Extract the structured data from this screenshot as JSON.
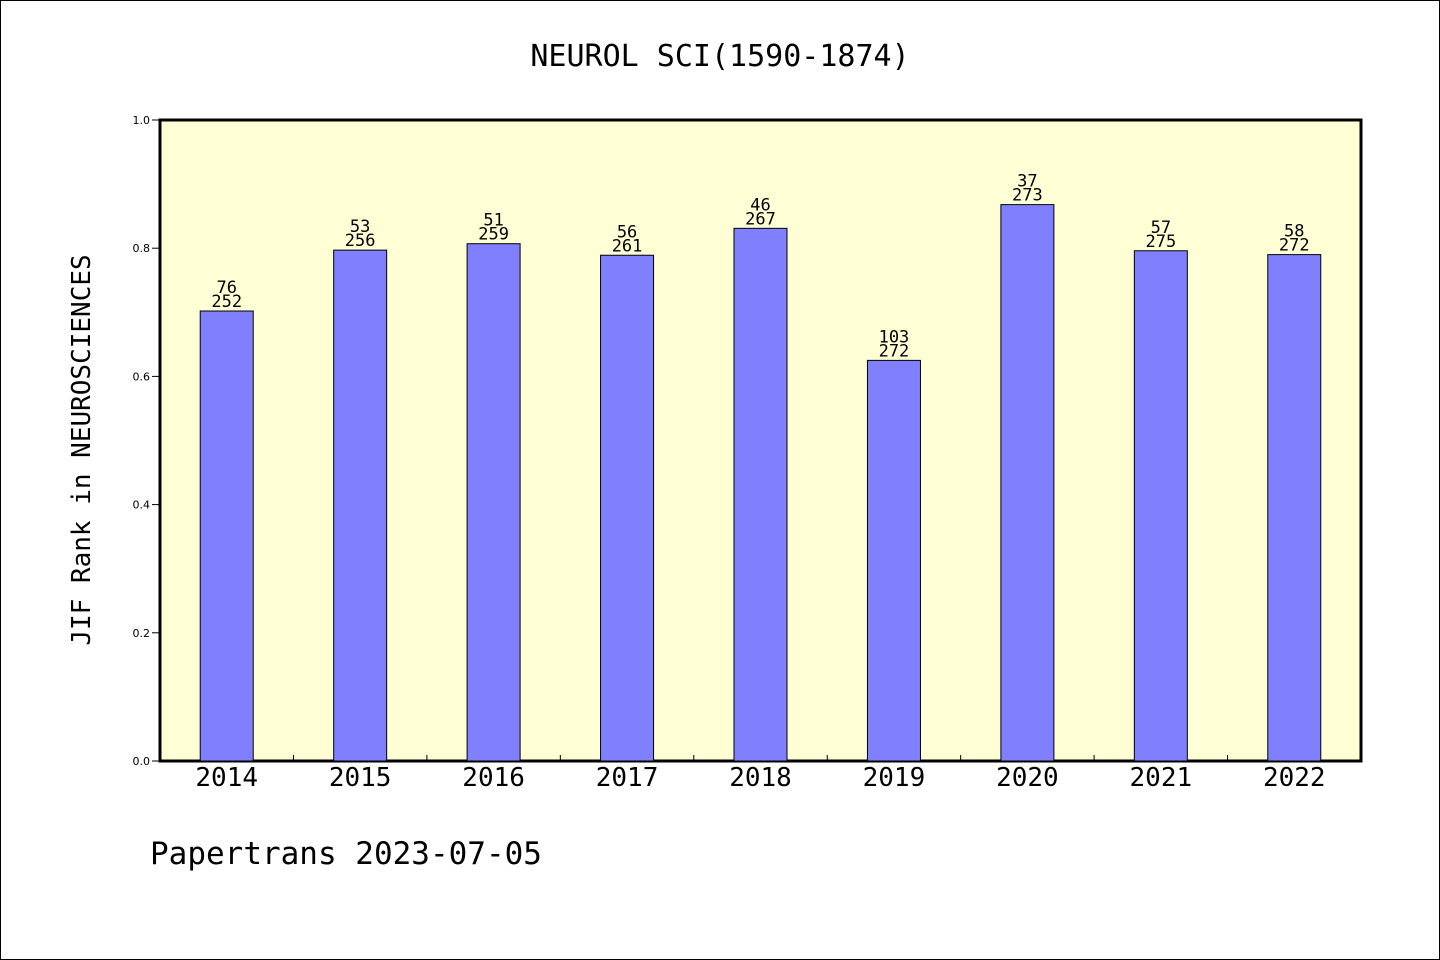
{
  "chart_data": {
    "type": "bar",
    "title": "NEUROL SCI(1590-1874)",
    "xlabel": "",
    "ylabel": "JIF Rank in NEUROSCIENCES",
    "ylim": [
      0,
      1.0
    ],
    "yticks": [
      "0.0",
      "0.2",
      "0.4",
      "0.6",
      "0.8",
      "1.0"
    ],
    "grid": false,
    "categories": [
      "2014",
      "2015",
      "2016",
      "2017",
      "2018",
      "2019",
      "2020",
      "2021",
      "2022"
    ],
    "values": [
      0.702,
      0.797,
      0.807,
      0.789,
      0.831,
      0.625,
      0.868,
      0.796,
      0.79
    ],
    "labels_top": [
      "76",
      "53",
      "51",
      "56",
      "46",
      "103",
      "37",
      "57",
      "58"
    ],
    "labels_bottom": [
      "252",
      "256",
      "259",
      "261",
      "267",
      "272",
      "273",
      "275",
      "272"
    ],
    "plot_background": "#ffffd6",
    "bar_color": "#8080ff"
  },
  "footer": "Papertrans 2023-07-05"
}
